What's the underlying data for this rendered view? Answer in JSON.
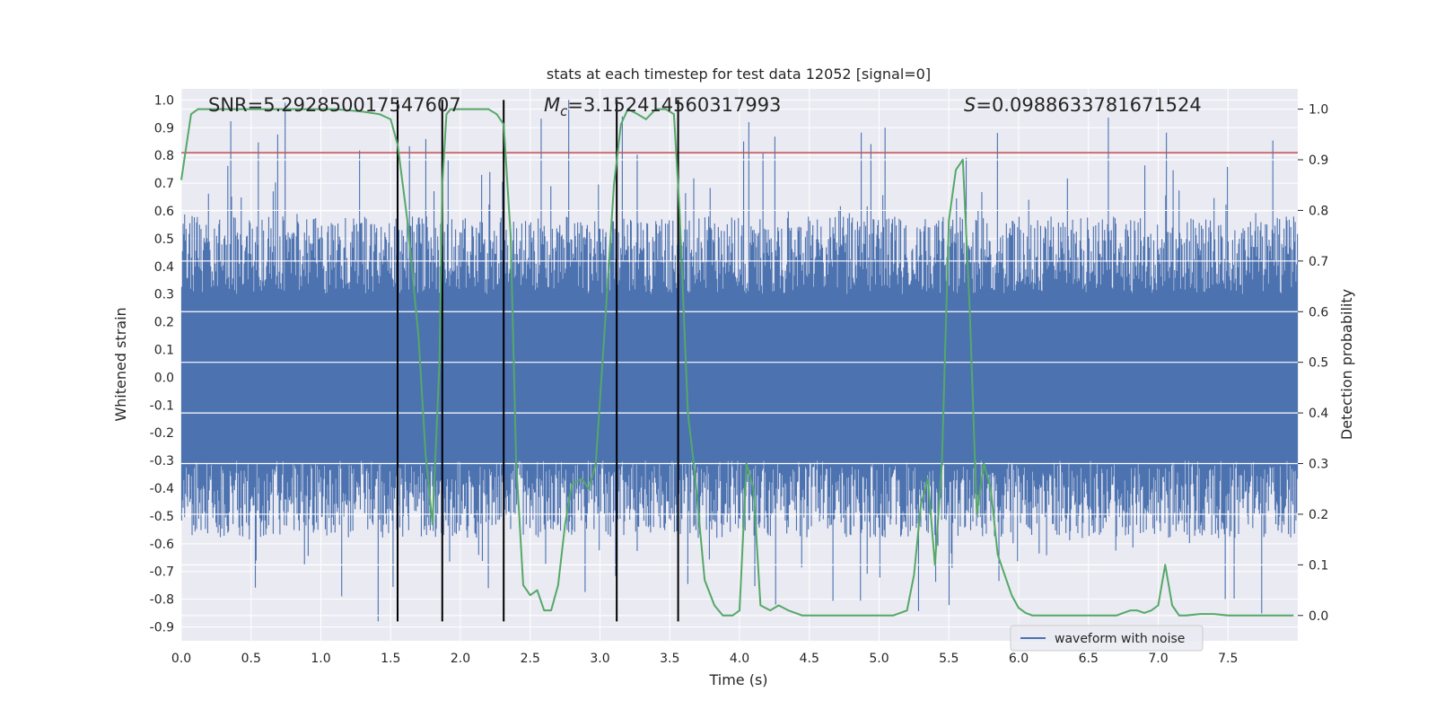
{
  "chart_data": {
    "type": "line",
    "title": "stats at each timestep for test data 12052 [signal=0]",
    "xlabel": "Time (s)",
    "ylabel_left": "Whitened strain",
    "ylabel_right": "Detection probability",
    "xlim": [
      0.0,
      8.0
    ],
    "ylim_left": [
      -0.95,
      1.04
    ],
    "ylim_right": [
      -0.05,
      1.04
    ],
    "x_ticks": [
      "0.0",
      "0.5",
      "1.0",
      "1.5",
      "2.0",
      "2.5",
      "3.0",
      "3.5",
      "4.0",
      "4.5",
      "5.0",
      "5.5",
      "6.0",
      "6.5",
      "7.0",
      "7.5"
    ],
    "y_ticks_left": [
      "1.0",
      "0.9",
      "0.8",
      "0.7",
      "0.6",
      "0.5",
      "0.4",
      "0.3",
      "0.2",
      "0.1",
      "0.0",
      "-0.1",
      "-0.2",
      "-0.3",
      "-0.4",
      "-0.5",
      "-0.6",
      "-0.7",
      "-0.8",
      "-0.9"
    ],
    "y_ticks_right": [
      "1.0",
      "0.9",
      "0.8",
      "0.7",
      "0.6",
      "0.5",
      "0.4",
      "0.3",
      "0.2",
      "0.1",
      "0.0"
    ],
    "annotations": {
      "snr": "SNR=5.292850017547607",
      "mc_symbol": "M",
      "mc_sub": "c",
      "mc_value": "=3.152414560317993",
      "s_symbol": "S",
      "s_value": "=0.0988633781671524"
    },
    "threshold": {
      "axis": "left",
      "y": 0.81,
      "color": "#c44e52"
    },
    "vertical_lines": [
      1.55,
      1.87,
      2.31,
      3.12,
      3.56
    ],
    "vertical_line_range": [
      -0.88,
      1.0
    ],
    "legend": {
      "entries": [
        "waveform with noise"
      ],
      "placement": "lower-right"
    },
    "grid": true,
    "series": [
      {
        "name": "waveform with noise",
        "axis": "left",
        "color": "#4c72b0",
        "style": "dense-noise",
        "band": [
          -0.3,
          0.3
        ],
        "extreme_range": [
          -0.88,
          1.0
        ]
      },
      {
        "axis": "right",
        "color": "#55a868",
        "x": [
          0.0,
          0.07,
          0.12,
          0.3,
          0.5,
          0.7,
          0.9,
          1.1,
          1.3,
          1.42,
          1.5,
          1.55,
          1.62,
          1.7,
          1.75,
          1.8,
          1.85,
          1.87,
          1.9,
          1.93,
          1.97,
          2.0,
          2.1,
          2.2,
          2.26,
          2.31,
          2.36,
          2.4,
          2.45,
          2.5,
          2.55,
          2.6,
          2.65,
          2.7,
          2.75,
          2.8,
          2.87,
          2.92,
          2.97,
          3.03,
          3.1,
          3.15,
          3.2,
          3.27,
          3.33,
          3.4,
          3.47,
          3.53,
          3.57,
          3.63,
          3.68,
          3.75,
          3.82,
          3.88,
          3.95,
          4.0,
          4.05,
          4.1,
          4.15,
          4.22,
          4.28,
          4.35,
          4.45,
          4.6,
          4.8,
          5.0,
          5.1,
          5.2,
          5.25,
          5.3,
          5.35,
          5.4,
          5.45,
          5.5,
          5.55,
          5.6,
          5.65,
          5.7,
          5.75,
          5.8,
          5.85,
          5.9,
          5.95,
          6.0,
          6.05,
          6.1,
          6.2,
          6.3,
          6.4,
          6.5,
          6.6,
          6.7,
          6.75,
          6.8,
          6.85,
          6.9,
          6.95,
          7.0,
          7.05,
          7.1,
          7.15,
          7.2,
          7.3,
          7.4,
          7.5,
          7.6,
          7.7,
          7.8,
          7.9,
          7.97
        ],
        "values": [
          0.86,
          0.99,
          1.0,
          1.0,
          1.0,
          1.0,
          1.0,
          1.0,
          0.995,
          0.99,
          0.98,
          0.93,
          0.78,
          0.55,
          0.32,
          0.18,
          0.5,
          0.85,
          0.99,
          1.0,
          1.0,
          1.0,
          1.0,
          1.0,
          0.99,
          0.97,
          0.75,
          0.3,
          0.06,
          0.04,
          0.05,
          0.01,
          0.01,
          0.06,
          0.18,
          0.26,
          0.27,
          0.25,
          0.3,
          0.55,
          0.85,
          0.97,
          1.0,
          0.99,
          0.98,
          1.0,
          1.0,
          0.99,
          0.8,
          0.4,
          0.28,
          0.07,
          0.02,
          0.0,
          0.0,
          0.01,
          0.3,
          0.25,
          0.02,
          0.01,
          0.02,
          0.01,
          0.0,
          0.0,
          0.0,
          0.0,
          0.0,
          0.01,
          0.08,
          0.22,
          0.27,
          0.1,
          0.3,
          0.78,
          0.88,
          0.9,
          0.6,
          0.2,
          0.3,
          0.25,
          0.12,
          0.08,
          0.04,
          0.015,
          0.005,
          0.0,
          0.0,
          0.0,
          0.0,
          0.0,
          0.0,
          0.0,
          0.005,
          0.01,
          0.01,
          0.005,
          0.01,
          0.02,
          0.1,
          0.02,
          0.0,
          0.0,
          0.003,
          0.003,
          0.0,
          0.0,
          0.0,
          0.0,
          0.0,
          0.0
        ]
      }
    ]
  }
}
